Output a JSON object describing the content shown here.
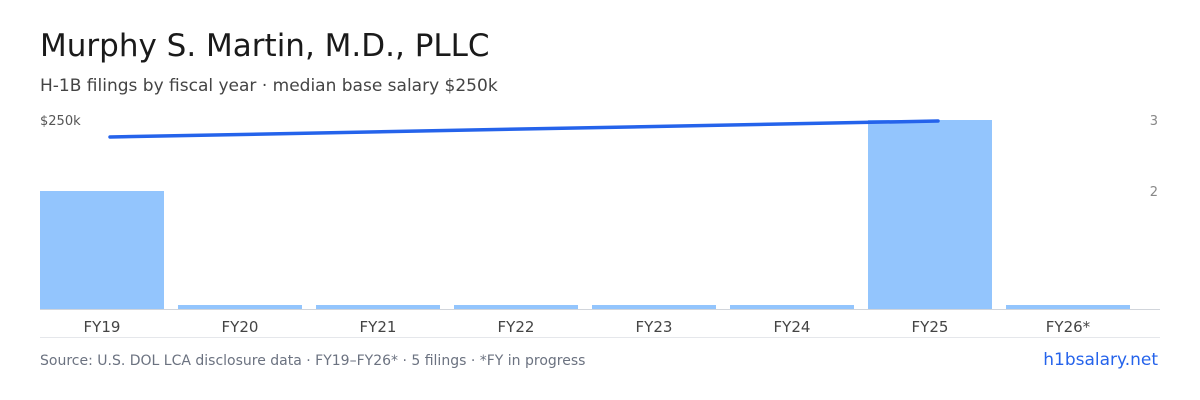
{
  "chart_data": {
    "type": "bar",
    "title": "Murphy S. Martin, M.D., PLLC",
    "subtitle": "H-1B filings by fiscal year · median base salary $250k",
    "categories": [
      "FY19",
      "FY20",
      "FY21",
      "FY22",
      "FY23",
      "FY24",
      "FY25",
      "FY26*"
    ],
    "series": [
      {
        "values": [
          2,
          0,
          0,
          0,
          0,
          0,
          3,
          0
        ]
      },
      {
        "values": [
          250000,
          null,
          null,
          null,
          null,
          null,
          250000,
          null
        ]
      }
    ],
    "left_axis": {
      "tick_label": "$250k",
      "tick_value": 250000
    },
    "right_axis": {
      "ticks": [
        2,
        3
      ]
    },
    "colors": {
      "bars": "#93c5fd",
      "line": "#2563eb"
    }
  },
  "footer": {
    "source": "Source: U.S. DOL LCA disclosure data · FY19–FY26* · 5 filings · *FY in progress",
    "brand": "h1bsalary.net"
  }
}
